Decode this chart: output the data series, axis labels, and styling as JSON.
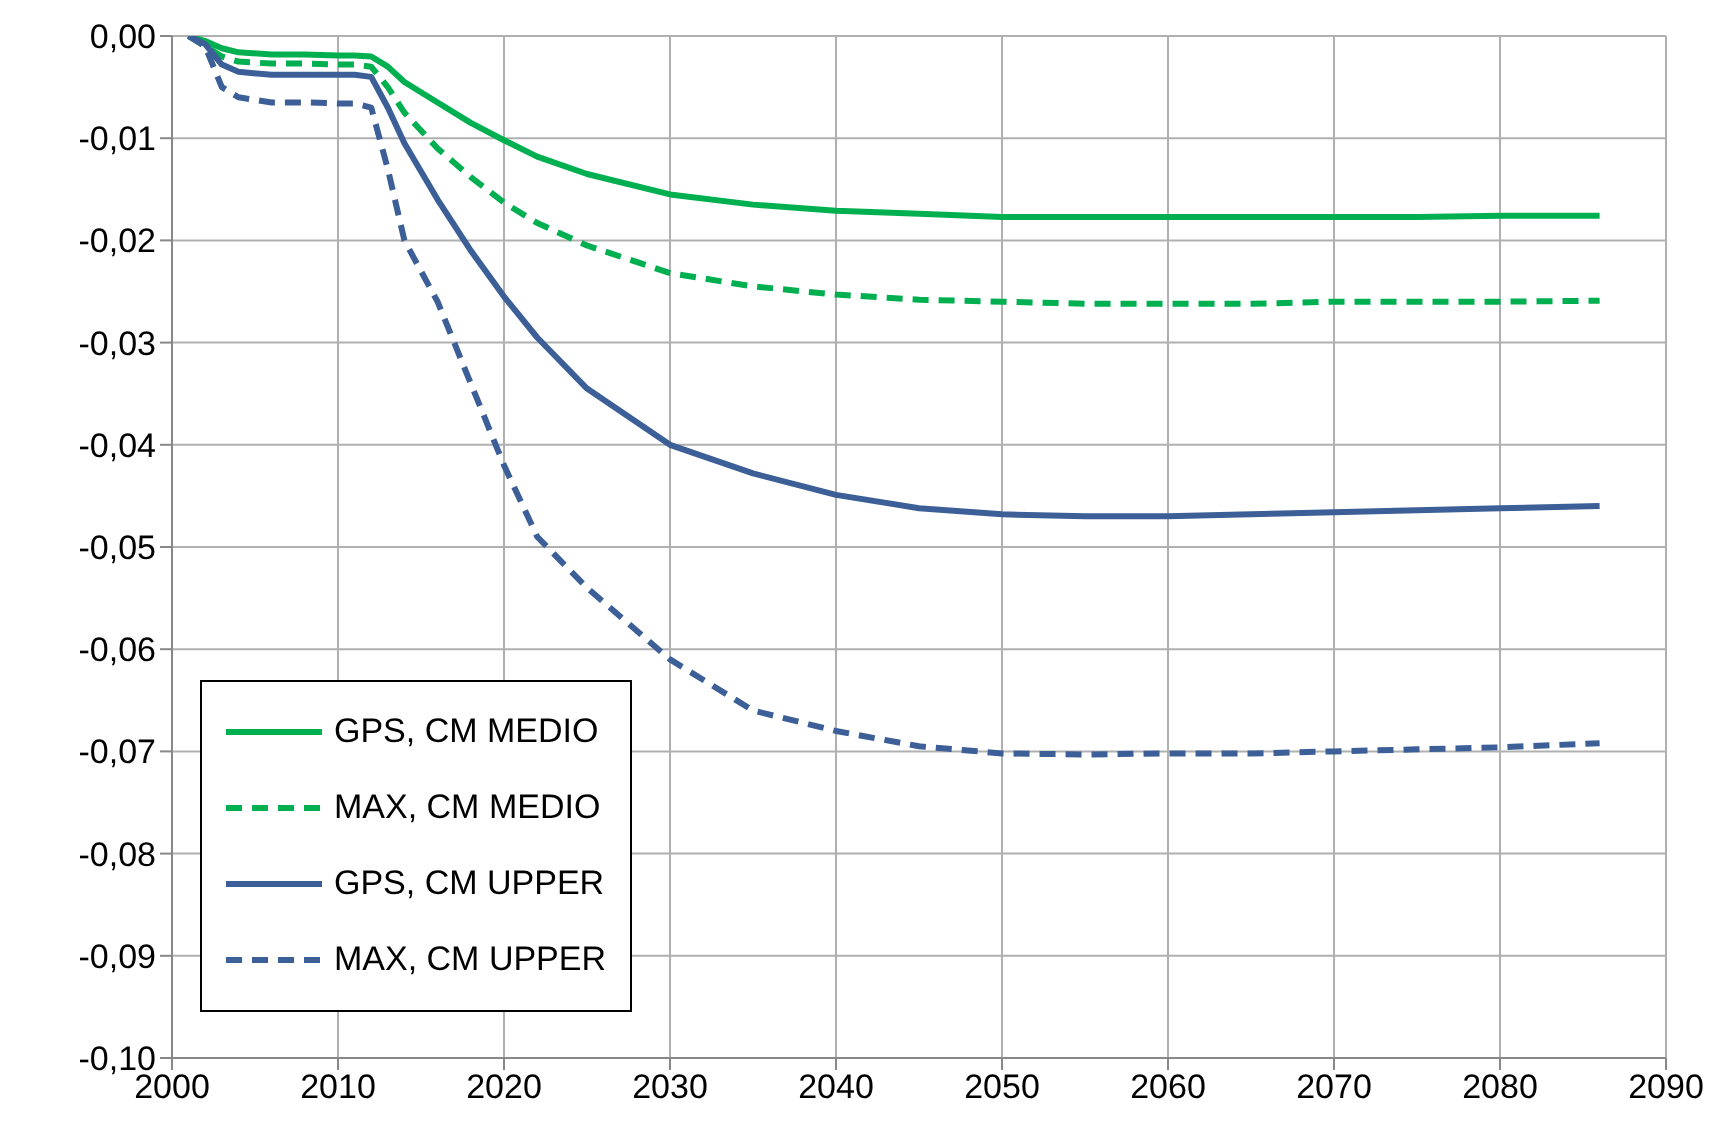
{
  "chart_data": {
    "type": "line",
    "x": [
      2001,
      2002,
      2003,
      2004,
      2006,
      2008,
      2010,
      2011,
      2012,
      2013,
      2014,
      2016,
      2018,
      2020,
      2022,
      2025,
      2030,
      2035,
      2040,
      2045,
      2050,
      2055,
      2060,
      2065,
      2070,
      2075,
      2080,
      2086
    ],
    "series": [
      {
        "name": "GPS, CM MEDIO",
        "color": "#00b050",
        "line_style": "solid",
        "values": [
          0,
          -0.0005,
          -0.0012,
          -0.0016,
          -0.0018,
          -0.0018,
          -0.0019,
          -0.0019,
          -0.002,
          -0.003,
          -0.0045,
          -0.0065,
          -0.0085,
          -0.0102,
          -0.0118,
          -0.0135,
          -0.0155,
          -0.0165,
          -0.0171,
          -0.0174,
          -0.0177,
          -0.0177,
          -0.0177,
          -0.0177,
          -0.0177,
          -0.0177,
          -0.0176,
          -0.0176
        ]
      },
      {
        "name": "MAX, CM MEDIO",
        "color": "#00b050",
        "line_style": "dashed",
        "values": [
          0,
          -0.001,
          -0.002,
          -0.0025,
          -0.0027,
          -0.0027,
          -0.0028,
          -0.0028,
          -0.003,
          -0.005,
          -0.0075,
          -0.011,
          -0.0138,
          -0.0163,
          -0.0183,
          -0.0205,
          -0.0232,
          -0.0245,
          -0.0253,
          -0.0258,
          -0.026,
          -0.0262,
          -0.0262,
          -0.0262,
          -0.026,
          -0.026,
          -0.026,
          -0.0259
        ]
      },
      {
        "name": "GPS, CM UPPER",
        "color": "#3b5f96",
        "line_style": "solid",
        "values": [
          0,
          -0.0008,
          -0.0028,
          -0.0035,
          -0.0038,
          -0.0038,
          -0.0038,
          -0.0038,
          -0.004,
          -0.007,
          -0.0105,
          -0.016,
          -0.021,
          -0.0255,
          -0.0295,
          -0.0345,
          -0.04,
          -0.0428,
          -0.0449,
          -0.0462,
          -0.0468,
          -0.047,
          -0.047,
          -0.0468,
          -0.0466,
          -0.0464,
          -0.0462,
          -0.046
        ]
      },
      {
        "name": "MAX, CM UPPER",
        "color": "#3b5f96",
        "line_style": "dashed",
        "values": [
          0,
          -0.001,
          -0.005,
          -0.006,
          -0.0065,
          -0.0065,
          -0.0066,
          -0.0066,
          -0.007,
          -0.013,
          -0.02,
          -0.026,
          -0.034,
          -0.042,
          -0.049,
          -0.054,
          -0.061,
          -0.066,
          -0.068,
          -0.0695,
          -0.0702,
          -0.0703,
          -0.0702,
          -0.0702,
          -0.07,
          -0.0698,
          -0.0696,
          -0.0692
        ]
      }
    ],
    "xlim": [
      2000,
      2090
    ],
    "xticks": [
      2000,
      2010,
      2020,
      2030,
      2040,
      2050,
      2060,
      2070,
      2080,
      2090
    ],
    "ylim": [
      -0.1,
      0
    ],
    "yticks": [
      {
        "value": 0,
        "label": "0,00"
      },
      {
        "value": -0.01,
        "label": "-0,01"
      },
      {
        "value": -0.02,
        "label": "-0,02"
      },
      {
        "value": -0.03,
        "label": "-0,03"
      },
      {
        "value": -0.04,
        "label": "-0,04"
      },
      {
        "value": -0.05,
        "label": "-0,05"
      },
      {
        "value": -0.06,
        "label": "-0,06"
      },
      {
        "value": -0.07,
        "label": "-0,07"
      },
      {
        "value": -0.08,
        "label": "-0,08"
      },
      {
        "value": -0.09,
        "label": "-0,09"
      },
      {
        "value": -0.1,
        "label": "-0,10"
      }
    ],
    "grid": true,
    "legend": "bottom left",
    "marker": "none"
  }
}
